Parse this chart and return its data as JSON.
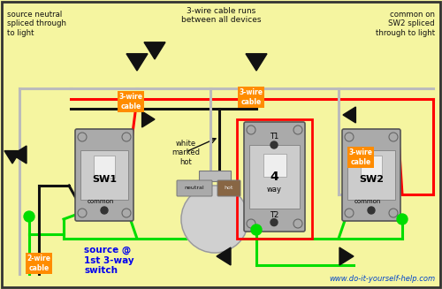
{
  "bg_color": "#F5F5A0",
  "border_color": "#333333",
  "website": "www.do-it-yourself-help.com",
  "colors": {
    "red": "#FF0000",
    "green": "#00DD00",
    "black": "#111111",
    "gray": "#AAAAAA",
    "dark_gray": "#777777",
    "orange": "#FF8C00",
    "blue": "#0000EE",
    "light_gray": "#CCCCCC",
    "wire_gray": "#BBBBBB",
    "switch_gray": "#AAAAAA",
    "white_wire": "#DDDDDD"
  },
  "text": {
    "top_left": "source neutral\nspliced through\nto light",
    "top_mid": "3-wire cable runs\nbetween all devices",
    "top_right": "common on\nSW2 spliced\nthrough to light",
    "white_hot": "white\nmarked\nhot",
    "source": "source @\n1st 3-way\nswitch",
    "website": "www.do-it-yourself-help.com"
  }
}
